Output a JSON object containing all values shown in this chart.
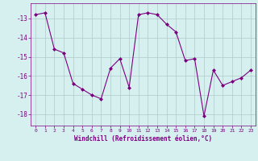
{
  "x": [
    0,
    1,
    2,
    3,
    4,
    5,
    6,
    7,
    8,
    9,
    10,
    11,
    12,
    13,
    14,
    15,
    16,
    17,
    18,
    19,
    20,
    21,
    22,
    23
  ],
  "y": [
    -12.8,
    -12.7,
    -14.6,
    -14.8,
    -16.4,
    -16.7,
    -17.0,
    -17.2,
    -15.6,
    -15.1,
    -16.6,
    -12.8,
    -12.7,
    -12.8,
    -13.3,
    -13.7,
    -15.2,
    -15.1,
    -18.1,
    -15.7,
    -16.5,
    -16.3,
    -16.1,
    -15.7
  ],
  "line_color": "#7b0080",
  "marker": "D",
  "marker_size": 2.0,
  "bg_color": "#d6f0f0",
  "grid_color": "#b0c8c8",
  "xlabel": "Windchill (Refroidissement éolien,°C)",
  "xlabel_color": "#7b0080",
  "tick_color": "#7b0080",
  "ylabel_ticks": [
    -18,
    -17,
    -16,
    -15,
    -14,
    -13
  ],
  "xlim": [
    -0.5,
    23.5
  ],
  "ylim": [
    -18.6,
    -12.2
  ],
  "figsize": [
    3.2,
    2.0
  ],
  "dpi": 100
}
